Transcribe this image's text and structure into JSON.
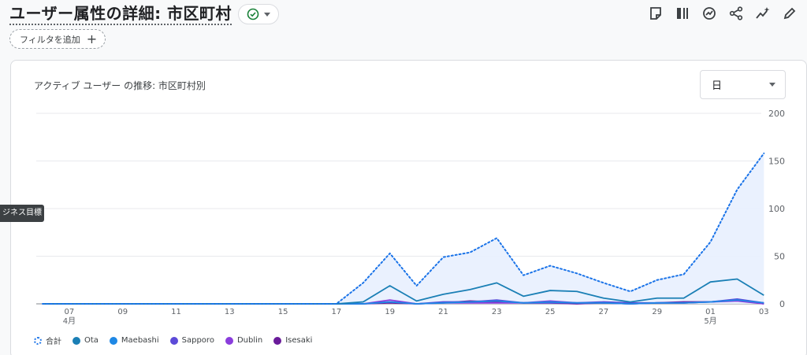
{
  "header": {
    "title": "ユーザー属性の詳細: 市区町村",
    "filter_label": "フィルタを追加"
  },
  "toolbar": {
    "icons": [
      "note-icon",
      "compare-icon",
      "insights-icon",
      "share-icon",
      "anomaly-icon",
      "edit-icon"
    ]
  },
  "card": {
    "title": "アクティブ ユーザー の推移: 市区町村別",
    "granularity": "日",
    "tooltip": "ジネス目標"
  },
  "colors": {
    "total": "#1a73e8",
    "Ota": "#1a7fb5",
    "Maebashi": "#1e88e5",
    "Sapporo": "#5c4ad8",
    "Dublin": "#8a3ddc",
    "Isesaki": "#6a1b9a"
  },
  "chart_data": {
    "type": "line",
    "x": [
      "04-06",
      "04-07",
      "04-08",
      "04-09",
      "04-10",
      "04-11",
      "04-12",
      "04-13",
      "04-14",
      "04-15",
      "04-16",
      "04-17",
      "04-18",
      "04-19",
      "04-20",
      "04-21",
      "04-22",
      "04-23",
      "04-24",
      "04-25",
      "04-26",
      "04-27",
      "04-28",
      "04-29",
      "04-30",
      "05-01",
      "05-02",
      "05-03"
    ],
    "x_tick_labels": [
      {
        "i": 1,
        "label": "07",
        "sub": "4月"
      },
      {
        "i": 3,
        "label": "09"
      },
      {
        "i": 5,
        "label": "11"
      },
      {
        "i": 7,
        "label": "13"
      },
      {
        "i": 9,
        "label": "15"
      },
      {
        "i": 11,
        "label": "17"
      },
      {
        "i": 13,
        "label": "19"
      },
      {
        "i": 15,
        "label": "21"
      },
      {
        "i": 17,
        "label": "23"
      },
      {
        "i": 19,
        "label": "25"
      },
      {
        "i": 21,
        "label": "27"
      },
      {
        "i": 23,
        "label": "29"
      },
      {
        "i": 25,
        "label": "01",
        "sub": "5月"
      },
      {
        "i": 27,
        "label": "03"
      }
    ],
    "y_ticks": [
      "0",
      "50",
      "100",
      "150",
      "200"
    ],
    "ylim": [
      0,
      200
    ],
    "series": [
      {
        "name": "合計",
        "style": "dotted",
        "values": [
          0,
          0,
          0,
          0,
          0,
          0,
          0,
          0,
          0,
          0,
          0,
          0,
          22,
          53,
          19,
          49,
          54,
          69,
          30,
          40,
          32,
          22,
          13,
          25,
          31,
          65,
          120,
          158
        ]
      },
      {
        "name": "Ota",
        "values": [
          0,
          0,
          0,
          0,
          0,
          0,
          0,
          0,
          0,
          0,
          0,
          0,
          2,
          19,
          3,
          10,
          15,
          22,
          8,
          14,
          13,
          6,
          2,
          6,
          6,
          23,
          26,
          9
        ]
      },
      {
        "name": "Maebashi",
        "values": [
          0,
          0,
          0,
          0,
          0,
          0,
          0,
          0,
          0,
          0,
          0,
          0,
          0,
          2,
          0,
          1,
          2,
          3,
          1,
          2,
          1,
          1,
          0,
          1,
          1,
          2,
          4,
          1
        ]
      },
      {
        "name": "Sapporo",
        "values": [
          0,
          0,
          0,
          0,
          0,
          0,
          0,
          0,
          0,
          0,
          0,
          0,
          0,
          2,
          0,
          2,
          2,
          4,
          1,
          1,
          1,
          2,
          1,
          1,
          1,
          2,
          5,
          1
        ]
      },
      {
        "name": "Dublin",
        "values": [
          0,
          0,
          0,
          0,
          0,
          0,
          0,
          0,
          0,
          0,
          0,
          0,
          0,
          4,
          0,
          1,
          1,
          1,
          1,
          3,
          1,
          1,
          0,
          1,
          1,
          2,
          3,
          0
        ]
      },
      {
        "name": "Isesaki",
        "values": [
          0,
          0,
          0,
          0,
          0,
          0,
          0,
          0,
          0,
          0,
          0,
          0,
          0,
          1,
          0,
          1,
          3,
          2,
          1,
          1,
          0,
          1,
          0,
          1,
          2,
          2,
          4,
          0
        ]
      }
    ]
  }
}
